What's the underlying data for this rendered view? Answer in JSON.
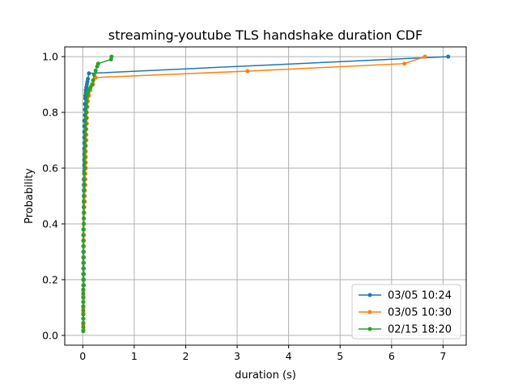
{
  "chart_data": {
    "type": "line",
    "title": "streaming-youtube TLS handshake duration CDF",
    "xlabel": "duration (s)",
    "ylabel": "Probability",
    "xlim": [
      -0.35,
      7.45
    ],
    "ylim": [
      -0.035,
      1.035
    ],
    "x_ticks": [
      0,
      1,
      2,
      3,
      4,
      5,
      6,
      7
    ],
    "y_ticks": [
      0.0,
      0.2,
      0.4,
      0.6,
      0.8,
      1.0
    ],
    "x_tick_labels": [
      "0",
      "1",
      "2",
      "3",
      "4",
      "5",
      "6",
      "7"
    ],
    "y_tick_labels": [
      "0.0",
      "0.2",
      "0.4",
      "0.6",
      "0.8",
      "1.0"
    ],
    "grid": true,
    "legend_position": "lower right",
    "series": [
      {
        "name": "03/05 10:24",
        "color": "#1f77b4",
        "x": [
          0.01,
          0.01,
          0.01,
          0.01,
          0.01,
          0.01,
          0.01,
          0.01,
          0.02,
          0.02,
          0.02,
          0.02,
          0.02,
          0.02,
          0.02,
          0.02,
          0.02,
          0.02,
          0.02,
          0.02,
          0.02,
          0.02,
          0.02,
          0.02,
          0.02,
          0.02,
          0.02,
          0.02,
          0.03,
          0.03,
          0.03,
          0.03,
          0.03,
          0.03,
          0.03,
          0.03,
          0.03,
          0.03,
          0.03,
          0.04,
          0.04,
          0.04,
          0.05,
          0.05,
          0.06,
          0.06,
          0.07,
          0.08,
          0.09,
          0.1,
          0.12,
          7.1
        ],
        "y": [
          0.02,
          0.04,
          0.06,
          0.08,
          0.1,
          0.12,
          0.14,
          0.16,
          0.18,
          0.2,
          0.22,
          0.24,
          0.26,
          0.28,
          0.3,
          0.32,
          0.34,
          0.36,
          0.38,
          0.4,
          0.42,
          0.44,
          0.46,
          0.48,
          0.5,
          0.52,
          0.54,
          0.56,
          0.58,
          0.59,
          0.61,
          0.63,
          0.65,
          0.67,
          0.69,
          0.71,
          0.73,
          0.75,
          0.77,
          0.79,
          0.81,
          0.83,
          0.85,
          0.86,
          0.87,
          0.88,
          0.89,
          0.9,
          0.91,
          0.92,
          0.94,
          1.0
        ]
      },
      {
        "name": "03/05 10:30",
        "color": "#ff7f0e",
        "x": [
          0.01,
          0.01,
          0.01,
          0.01,
          0.01,
          0.01,
          0.01,
          0.01,
          0.01,
          0.01,
          0.01,
          0.01,
          0.01,
          0.01,
          0.01,
          0.02,
          0.02,
          0.02,
          0.02,
          0.02,
          0.02,
          0.03,
          0.03,
          0.04,
          0.04,
          0.04,
          0.05,
          0.05,
          0.05,
          0.06,
          0.06,
          0.06,
          0.06,
          0.06,
          0.07,
          0.07,
          0.07,
          0.08,
          0.08,
          0.08,
          0.09,
          0.1,
          0.12,
          0.15,
          0.2,
          0.25,
          3.2,
          6.25,
          6.65
        ],
        "y": [
          0.02,
          0.04,
          0.06,
          0.08,
          0.1,
          0.12,
          0.14,
          0.16,
          0.18,
          0.2,
          0.22,
          0.24,
          0.26,
          0.28,
          0.3,
          0.32,
          0.34,
          0.36,
          0.38,
          0.4,
          0.42,
          0.44,
          0.46,
          0.48,
          0.5,
          0.52,
          0.54,
          0.56,
          0.58,
          0.6,
          0.62,
          0.64,
          0.66,
          0.68,
          0.7,
          0.72,
          0.74,
          0.76,
          0.78,
          0.8,
          0.82,
          0.84,
          0.86,
          0.88,
          0.9,
          0.925,
          0.948,
          0.975,
          1.0
        ]
      },
      {
        "name": "02/15 18:20",
        "color": "#2ca02c",
        "x": [
          0.01,
          0.01,
          0.01,
          0.01,
          0.01,
          0.01,
          0.01,
          0.01,
          0.01,
          0.01,
          0.01,
          0.01,
          0.01,
          0.01,
          0.01,
          0.01,
          0.01,
          0.01,
          0.01,
          0.01,
          0.01,
          0.01,
          0.02,
          0.02,
          0.02,
          0.02,
          0.02,
          0.02,
          0.03,
          0.03,
          0.03,
          0.03,
          0.04,
          0.04,
          0.04,
          0.04,
          0.05,
          0.05,
          0.05,
          0.06,
          0.06,
          0.07,
          0.07,
          0.08,
          0.08,
          0.09,
          0.1,
          0.12,
          0.15,
          0.18,
          0.2,
          0.22,
          0.25,
          0.28,
          0.3,
          0.55,
          0.56
        ],
        "y": [
          0.015,
          0.03,
          0.045,
          0.06,
          0.075,
          0.09,
          0.105,
          0.12,
          0.135,
          0.15,
          0.165,
          0.18,
          0.2,
          0.22,
          0.24,
          0.26,
          0.28,
          0.3,
          0.32,
          0.34,
          0.36,
          0.38,
          0.4,
          0.42,
          0.44,
          0.46,
          0.48,
          0.5,
          0.52,
          0.54,
          0.56,
          0.58,
          0.6,
          0.62,
          0.64,
          0.66,
          0.68,
          0.7,
          0.72,
          0.74,
          0.76,
          0.78,
          0.8,
          0.82,
          0.84,
          0.86,
          0.87,
          0.88,
          0.89,
          0.9,
          0.915,
          0.935,
          0.95,
          0.965,
          0.975,
          0.99,
          1.0
        ]
      }
    ]
  }
}
